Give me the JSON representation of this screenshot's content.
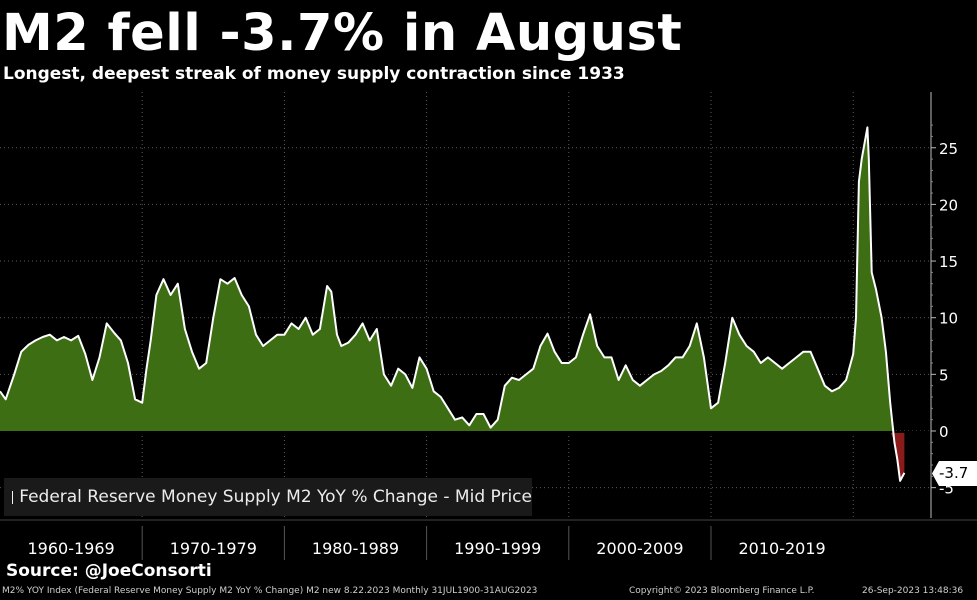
{
  "header": {
    "title": "M2 fell -3.7% in August",
    "subtitle": "Longest, deepest streak of money supply contraction since 1933"
  },
  "source": "Source: @JoeConsorti",
  "footer": {
    "ticker": "M2% YOY Index (Federal Reserve Money Supply M2 YoY % Change) M2 new 8.22.2023  Monthly 31JUL1900-31AUG2023",
    "copyright": "Copyright© 2023 Bloomberg Finance L.P.",
    "timestamp": "26-Sep-2023 13:48:36"
  },
  "last_value_label": "-3.7",
  "colors": {
    "positive_fill": "#3e6e14",
    "negative_fill": "#8b1a1a",
    "line": "#ffffff",
    "background": "#000000",
    "grid": "#5a5a5a"
  },
  "chart_data": {
    "type": "area",
    "title": "M2 fell -3.7% in August",
    "subtitle": "Longest, deepest streak of money supply contraction since 1933",
    "series_name": "Federal Reserve Money Supply M2 YoY % Change - Mid Price",
    "ylim": [
      -5,
      27
    ],
    "yticks": [
      -5,
      0,
      5,
      10,
      15,
      20,
      25
    ],
    "xlim": [
      1960,
      2024
    ],
    "x_periods": [
      "1960-1969",
      "1970-1979",
      "1980-1989",
      "1990-1999",
      "2000-2009",
      "2010-2019"
    ],
    "grid": true,
    "legend": "bottom-left",
    "series": [
      {
        "name": "Federal Reserve Money Supply M2 YoY % Change - Mid Price",
        "x": [
          1960.0,
          1960.4,
          1961.0,
          1961.5,
          1962.0,
          1962.5,
          1963.0,
          1963.5,
          1964.0,
          1964.5,
          1965.0,
          1965.5,
          1966.0,
          1966.5,
          1967.0,
          1967.5,
          1968.0,
          1968.5,
          1969.0,
          1969.5,
          1970.0,
          1970.3,
          1970.6,
          1971.0,
          1971.5,
          1972.0,
          1972.5,
          1973.0,
          1973.5,
          1974.0,
          1974.5,
          1975.0,
          1975.5,
          1976.0,
          1976.5,
          1977.0,
          1977.5,
          1978.0,
          1978.5,
          1979.0,
          1979.5,
          1980.0,
          1980.5,
          1981.0,
          1981.5,
          1982.0,
          1982.5,
          1983.0,
          1983.3,
          1983.7,
          1984.0,
          1984.5,
          1985.0,
          1985.5,
          1986.0,
          1986.5,
          1987.0,
          1987.5,
          1988.0,
          1988.5,
          1989.0,
          1989.5,
          1990.0,
          1990.5,
          1991.0,
          1991.5,
          1992.0,
          1992.5,
          1993.0,
          1993.5,
          1994.0,
          1994.5,
          1995.0,
          1995.5,
          1996.0,
          1996.5,
          1997.0,
          1997.5,
          1998.0,
          1998.5,
          1999.0,
          1999.5,
          2000.0,
          2000.5,
          2001.0,
          2001.5,
          2002.0,
          2002.5,
          2003.0,
          2003.5,
          2004.0,
          2004.5,
          2005.0,
          2005.5,
          2006.0,
          2006.5,
          2007.0,
          2007.5,
          2008.0,
          2008.5,
          2009.0,
          2009.5,
          2010.0,
          2010.5,
          2011.0,
          2011.5,
          2012.0,
          2012.5,
          2013.0,
          2013.5,
          2014.0,
          2014.5,
          2015.0,
          2015.5,
          2016.0,
          2016.5,
          2017.0,
          2017.5,
          2018.0,
          2018.5,
          2019.0,
          2019.5,
          2020.0,
          2020.2,
          2020.4,
          2020.6,
          2021.0,
          2021.1,
          2021.3,
          2021.6,
          2022.0,
          2022.3,
          2022.6,
          2022.9,
          2023.1,
          2023.3,
          2023.6
        ],
        "values": [
          3.5,
          2.8,
          5.0,
          7.0,
          7.6,
          8.0,
          8.3,
          8.5,
          8.0,
          8.3,
          8.0,
          8.4,
          6.8,
          4.5,
          6.5,
          9.5,
          8.7,
          8.0,
          6.0,
          2.8,
          2.5,
          5.5,
          8.0,
          12.0,
          13.4,
          12.0,
          13.0,
          9.0,
          7.0,
          5.5,
          6.0,
          10.0,
          13.4,
          13.0,
          13.5,
          12.0,
          11.0,
          8.5,
          7.5,
          8.0,
          8.5,
          8.5,
          9.5,
          9.0,
          10.0,
          8.5,
          9.0,
          12.8,
          12.3,
          8.5,
          7.5,
          7.8,
          8.5,
          9.5,
          8.0,
          9.0,
          5.0,
          4.0,
          5.5,
          5.0,
          3.8,
          6.5,
          5.5,
          3.5,
          3.0,
          2.0,
          1.0,
          1.2,
          0.5,
          1.5,
          1.5,
          0.3,
          1.0,
          4.0,
          4.7,
          4.5,
          5.0,
          5.5,
          7.5,
          8.6,
          7.0,
          6.0,
          6.0,
          6.5,
          8.5,
          10.3,
          7.5,
          6.5,
          6.5,
          4.5,
          5.8,
          4.5,
          4.0,
          4.5,
          5.0,
          5.3,
          5.8,
          6.5,
          6.5,
          7.5,
          9.5,
          6.5,
          2.0,
          2.5,
          6.0,
          10.0,
          8.5,
          7.5,
          7.0,
          6.0,
          6.5,
          6.0,
          5.5,
          6.0,
          6.5,
          7.0,
          7.0,
          5.5,
          4.0,
          3.5,
          3.8,
          4.5,
          6.8,
          10.0,
          22.0,
          24.0,
          26.8,
          24.0,
          14.0,
          12.5,
          10.0,
          7.0,
          2.5,
          -1.0,
          -2.5,
          -4.4,
          -3.7
        ]
      }
    ]
  }
}
